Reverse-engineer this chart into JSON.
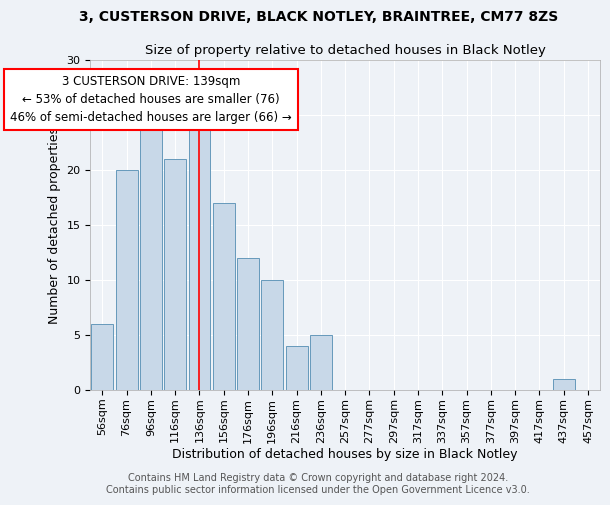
{
  "title1": "3, CUSTERSON DRIVE, BLACK NOTLEY, BRAINTREE, CM77 8ZS",
  "title2": "Size of property relative to detached houses in Black Notley",
  "xlabel": "Distribution of detached houses by size in Black Notley",
  "ylabel": "Number of detached properties",
  "footnote1": "Contains HM Land Registry data © Crown copyright and database right 2024.",
  "footnote2": "Contains public sector information licensed under the Open Government Licence v3.0.",
  "bar_labels": [
    "56sqm",
    "76sqm",
    "96sqm",
    "116sqm",
    "136sqm",
    "156sqm",
    "176sqm",
    "196sqm",
    "216sqm",
    "236sqm",
    "257sqm",
    "277sqm",
    "297sqm",
    "317sqm",
    "337sqm",
    "357sqm",
    "377sqm",
    "397sqm",
    "417sqm",
    "437sqm",
    "457sqm"
  ],
  "bar_values": [
    6,
    20,
    24,
    21,
    25,
    17,
    12,
    10,
    4,
    5,
    0,
    0,
    0,
    0,
    0,
    0,
    0,
    0,
    0,
    1,
    0
  ],
  "bar_color": "#c8d8e8",
  "bar_edge_color": "#6699bb",
  "reference_line_x": 4,
  "reference_line_color": "red",
  "annotation_text": "3 CUSTERSON DRIVE: 139sqm\n← 53% of detached houses are smaller (76)\n46% of semi-detached houses are larger (66) →",
  "annotation_box_color": "white",
  "annotation_box_edge_color": "red",
  "ylim": [
    0,
    30
  ],
  "yticks": [
    0,
    5,
    10,
    15,
    20,
    25,
    30
  ],
  "bg_color": "#eef2f7",
  "grid_color": "#ffffff",
  "title1_fontsize": 10,
  "title2_fontsize": 9.5,
  "axis_label_fontsize": 9,
  "tick_fontsize": 8,
  "annotation_fontsize": 8.5,
  "footnote_fontsize": 7
}
